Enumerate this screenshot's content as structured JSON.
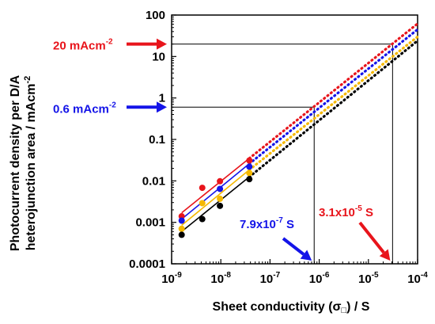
{
  "chart_data": {
    "type": "scatter",
    "xlabel": {
      "main": "Sheet conductivity (σ",
      "box": "□",
      "tail": ") / S"
    },
    "ylabel": {
      "line1": "Photocurrent density per D/A",
      "line2_main": "heterojunction area / mAcm",
      "line2_sup": "-2"
    },
    "xscale": "log",
    "yscale": "log",
    "xlim": [
      1e-09,
      0.0001
    ],
    "ylim": [
      0.0001,
      100
    ],
    "x_ticks": [
      {
        "value": 1e-09,
        "base": "10",
        "exp": "-9"
      },
      {
        "value": 1e-08,
        "base": "10",
        "exp": "-8"
      },
      {
        "value": 1e-07,
        "base": "10",
        "exp": "-7"
      },
      {
        "value": 1e-06,
        "base": "10",
        "exp": "-6"
      },
      {
        "value": 1e-05,
        "base": "10",
        "exp": "-5"
      },
      {
        "value": 0.0001,
        "base": "10",
        "exp": "-4"
      }
    ],
    "y_ticks": [
      {
        "value": 0.0001,
        "label": "0.0001"
      },
      {
        "value": 0.001,
        "label": "0.001"
      },
      {
        "value": 0.01,
        "label": "0.01"
      },
      {
        "value": 0.1,
        "label": "0.1"
      },
      {
        "value": 1,
        "label": "1"
      },
      {
        "value": 10,
        "label": "10"
      },
      {
        "value": 100,
        "label": "100"
      }
    ],
    "grid": false,
    "series": [
      {
        "color": "#e8141b",
        "points": [
          [
            1.6e-09,
            0.0014
          ],
          [
            4.2e-09,
            0.0068
          ],
          [
            9.6e-09,
            0.0098
          ],
          [
            3.8e-08,
            0.031
          ]
        ],
        "fit": [
          [
            1.6e-09,
            0.0017
          ],
          [
            3.8e-08,
            0.035
          ]
        ],
        "extrapolation": [
          [
            3.8e-08,
            0.035
          ],
          [
            0.0001,
            62
          ]
        ]
      },
      {
        "color": "#1414e8",
        "points": [
          [
            1.6e-09,
            0.0011
          ],
          [
            9.6e-09,
            0.0064
          ],
          [
            3.8e-08,
            0.022
          ]
        ],
        "fit": [
          [
            1.6e-09,
            0.0012
          ],
          [
            3.8e-08,
            0.026
          ]
        ],
        "extrapolation": [
          [
            3.8e-08,
            0.026
          ],
          [
            0.0001,
            45
          ]
        ]
      },
      {
        "color": "#f5b800",
        "points": [
          [
            1.6e-09,
            0.0007
          ],
          [
            4.2e-09,
            0.0029
          ],
          [
            9.6e-09,
            0.0037
          ],
          [
            3.8e-08,
            0.0155
          ]
        ],
        "fit": [
          [
            1.6e-09,
            0.00085
          ],
          [
            3.8e-08,
            0.0185
          ]
        ],
        "extrapolation": [
          [
            3.8e-08,
            0.0185
          ],
          [
            0.0001,
            30
          ]
        ]
      },
      {
        "color": "#000000",
        "points": [
          [
            1.6e-09,
            0.0005
          ],
          [
            4.2e-09,
            0.0012
          ],
          [
            9.6e-09,
            0.0025
          ],
          [
            3.8e-08,
            0.011
          ]
        ],
        "fit": [
          [
            1.6e-09,
            0.0006
          ],
          [
            3.8e-08,
            0.0125
          ]
        ],
        "extrapolation": [
          [
            3.8e-08,
            0.0125
          ],
          [
            0.0001,
            24
          ]
        ]
      }
    ],
    "reference_lines": [
      {
        "y": 20,
        "x": 3.1e-05
      },
      {
        "y": 0.6,
        "x": 7.9e-07
      }
    ],
    "annotations": [
      {
        "main": "20 mAcm",
        "sup": "-2",
        "color": "#e8141b",
        "axis": "y"
      },
      {
        "main": "0.6 mAcm",
        "sup": "-2",
        "color": "#1414e8",
        "axis": "y"
      },
      {
        "main": "7.9x10",
        "sup": "-7",
        "tail": " S",
        "color": "#1414e8",
        "axis": "x"
      },
      {
        "main": "3.1x10",
        "sup": "-5",
        "tail": " S",
        "color": "#e8141b",
        "axis": "x"
      }
    ]
  }
}
